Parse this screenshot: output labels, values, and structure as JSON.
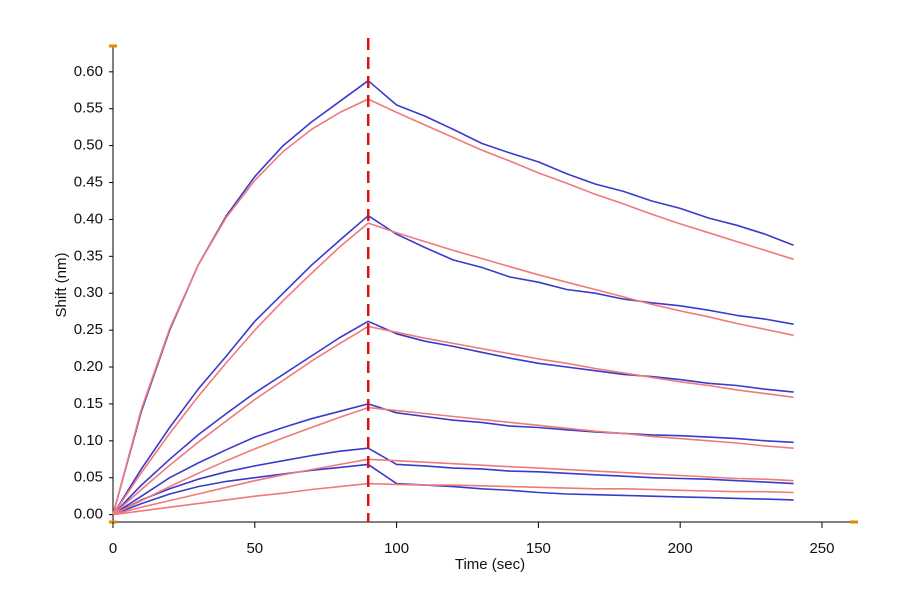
{
  "chart_data": {
    "type": "line",
    "xlabel": "Time (sec)",
    "ylabel": "Shift (nm)",
    "x": [
      0,
      10,
      20,
      30,
      40,
      50,
      60,
      70,
      80,
      90,
      100,
      110,
      120,
      130,
      140,
      150,
      160,
      170,
      180,
      190,
      200,
      210,
      220,
      230,
      240
    ],
    "vline": 90,
    "vline_color": "#dd1111",
    "xlim": [
      0,
      262
    ],
    "ylim": [
      -0.01,
      0.635
    ],
    "xticks": [
      0,
      50,
      100,
      150,
      200,
      250
    ],
    "yticks": [
      {
        "value": 0,
        "label": "0.00"
      },
      0.05,
      {
        "value": 0.1,
        "label": "0.10"
      },
      0.15,
      {
        "value": 0.2,
        "label": "0.20"
      },
      0.25,
      {
        "value": 0.3,
        "label": "0.30"
      },
      0.35,
      {
        "value": 0.4,
        "label": "0.40"
      },
      0.45,
      {
        "value": 0.5,
        "label": "0.50"
      },
      0.55,
      {
        "value": 0.6,
        "label": "0.60"
      }
    ],
    "series": [
      {
        "color": "#3a3acc",
        "values": [
          0,
          0.14,
          0.25,
          0.338,
          0.405,
          0.458,
          0.5,
          0.532,
          0.56,
          0.588,
          0.555,
          0.54,
          0.522,
          0.503,
          0.49,
          0.478,
          0.462,
          0.448,
          0.438,
          0.425,
          0.415,
          0.402,
          0.392,
          0.38,
          0.365
        ]
      },
      {
        "color": "#3a3acc",
        "values": [
          0,
          0.062,
          0.118,
          0.17,
          0.215,
          0.262,
          0.3,
          0.338,
          0.372,
          0.405,
          0.38,
          0.362,
          0.345,
          0.335,
          0.322,
          0.315,
          0.305,
          0.3,
          0.292,
          0.287,
          0.283,
          0.277,
          0.27,
          0.265,
          0.258
        ]
      },
      {
        "color": "#3a3acc",
        "values": [
          0,
          0.04,
          0.075,
          0.108,
          0.137,
          0.165,
          0.19,
          0.215,
          0.24,
          0.262,
          0.245,
          0.235,
          0.228,
          0.22,
          0.212,
          0.205,
          0.2,
          0.195,
          0.19,
          0.187,
          0.183,
          0.178,
          0.175,
          0.17,
          0.166
        ]
      },
      {
        "color": "#3a3acc",
        "values": [
          0,
          0.025,
          0.05,
          0.07,
          0.088,
          0.105,
          0.118,
          0.13,
          0.14,
          0.15,
          0.138,
          0.133,
          0.128,
          0.125,
          0.12,
          0.118,
          0.115,
          0.112,
          0.11,
          0.108,
          0.107,
          0.105,
          0.103,
          0.1,
          0.098
        ]
      },
      {
        "color": "#3a3acc",
        "values": [
          0,
          0.02,
          0.035,
          0.048,
          0.058,
          0.066,
          0.073,
          0.08,
          0.086,
          0.09,
          0.068,
          0.066,
          0.063,
          0.062,
          0.059,
          0.058,
          0.056,
          0.054,
          0.052,
          0.05,
          0.049,
          0.048,
          0.046,
          0.044,
          0.042
        ]
      },
      {
        "color": "#3a3acc",
        "values": [
          0,
          0.015,
          0.028,
          0.038,
          0.045,
          0.05,
          0.055,
          0.06,
          0.064,
          0.068,
          0.042,
          0.04,
          0.038,
          0.035,
          0.033,
          0.03,
          0.028,
          0.027,
          0.026,
          0.025,
          0.024,
          0.023,
          0.022,
          0.021,
          0.02
        ]
      },
      {
        "color": "#f07a7a",
        "values": [
          0,
          0.143,
          0.252,
          0.338,
          0.403,
          0.453,
          0.492,
          0.522,
          0.545,
          0.563,
          0.545,
          0.528,
          0.511,
          0.494,
          0.479,
          0.463,
          0.449,
          0.434,
          0.421,
          0.407,
          0.394,
          0.382,
          0.37,
          0.358,
          0.346
        ]
      },
      {
        "color": "#f07a7a",
        "values": [
          0,
          0.057,
          0.11,
          0.16,
          0.206,
          0.25,
          0.29,
          0.327,
          0.363,
          0.395,
          0.382,
          0.37,
          0.358,
          0.347,
          0.336,
          0.325,
          0.315,
          0.305,
          0.295,
          0.285,
          0.276,
          0.268,
          0.259,
          0.251,
          0.243
        ]
      },
      {
        "color": "#f07a7a",
        "values": [
          0,
          0.034,
          0.067,
          0.098,
          0.127,
          0.156,
          0.182,
          0.208,
          0.232,
          0.255,
          0.247,
          0.239,
          0.232,
          0.225,
          0.218,
          0.211,
          0.205,
          0.198,
          0.192,
          0.186,
          0.18,
          0.175,
          0.169,
          0.164,
          0.159
        ]
      },
      {
        "color": "#f07a7a",
        "values": [
          0,
          0.019,
          0.038,
          0.056,
          0.073,
          0.089,
          0.104,
          0.118,
          0.132,
          0.145,
          0.141,
          0.137,
          0.133,
          0.129,
          0.125,
          0.121,
          0.117,
          0.113,
          0.11,
          0.106,
          0.103,
          0.1,
          0.097,
          0.093,
          0.09
        ]
      },
      {
        "color": "#f07a7a",
        "values": [
          0,
          0.01,
          0.019,
          0.028,
          0.037,
          0.046,
          0.054,
          0.061,
          0.068,
          0.075,
          0.073,
          0.071,
          0.069,
          0.067,
          0.065,
          0.063,
          0.061,
          0.059,
          0.057,
          0.055,
          0.053,
          0.051,
          0.049,
          0.048,
          0.046
        ]
      },
      {
        "color": "#f07a7a",
        "values": [
          0,
          0.005,
          0.01,
          0.015,
          0.02,
          0.025,
          0.029,
          0.034,
          0.038,
          0.042,
          0.041,
          0.04,
          0.04,
          0.039,
          0.038,
          0.037,
          0.036,
          0.035,
          0.035,
          0.034,
          0.033,
          0.032,
          0.031,
          0.031,
          0.03
        ]
      }
    ]
  }
}
